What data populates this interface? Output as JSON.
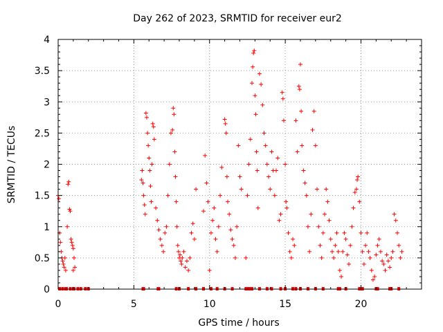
{
  "chart_data": {
    "type": "scatter",
    "title": "Day 262 of 2023, SRMTID for receiver eur2",
    "xlabel": "GPS time / hours",
    "ylabel": "SRMTID / TECUs",
    "xlim": [
      0,
      24
    ],
    "ylim": [
      0,
      4
    ],
    "xticks": [
      0,
      5,
      10,
      15,
      20
    ],
    "yticks": [
      0,
      0.5,
      1,
      1.5,
      2,
      2.5,
      3,
      3.5,
      4
    ],
    "xtick_labels": [
      "0",
      "5",
      "10",
      "15",
      "20"
    ],
    "ytick_labels": [
      "0",
      "0.5",
      "1",
      "1.5",
      "2",
      "2.5",
      "3",
      "3.5",
      "4"
    ],
    "grid": true,
    "marker": "plus",
    "color": "#ff0000",
    "series": [
      {
        "name": "SRMTID",
        "points": [
          [
            0.0,
            1.5
          ],
          [
            0.05,
            1.45
          ],
          [
            0.1,
            0.9
          ],
          [
            0.15,
            0.75
          ],
          [
            0.2,
            0.6
          ],
          [
            0.25,
            0.5
          ],
          [
            0.3,
            0.45
          ],
          [
            0.35,
            0.4
          ],
          [
            0.4,
            0.35
          ],
          [
            0.45,
            0.5
          ],
          [
            0.5,
            0.3
          ],
          [
            0.6,
            1.0
          ],
          [
            0.65,
            1.68
          ],
          [
            0.7,
            1.72
          ],
          [
            0.75,
            1.28
          ],
          [
            0.8,
            1.25
          ],
          [
            0.85,
            0.8
          ],
          [
            0.9,
            0.75
          ],
          [
            0.95,
            0.7
          ],
          [
            1.0,
            0.65
          ],
          [
            1.05,
            0.5
          ],
          [
            1.1,
            0.35
          ],
          [
            1.0,
            0.3
          ],
          [
            5.5,
            1.75
          ],
          [
            5.55,
            1.9
          ],
          [
            5.6,
            1.7
          ],
          [
            5.65,
            1.5
          ],
          [
            5.7,
            1.35
          ],
          [
            5.75,
            1.2
          ],
          [
            5.8,
            2.82
          ],
          [
            5.85,
            2.75
          ],
          [
            5.9,
            2.5
          ],
          [
            5.95,
            2.3
          ],
          [
            6.0,
            2.1
          ],
          [
            6.05,
            1.9
          ],
          [
            6.1,
            1.65
          ],
          [
            6.15,
            1.4
          ],
          [
            6.2,
            2.0
          ],
          [
            6.25,
            2.65
          ],
          [
            6.3,
            2.6
          ],
          [
            6.35,
            2.4
          ],
          [
            6.45,
            1.3
          ],
          [
            6.55,
            1.1
          ],
          [
            6.65,
            0.95
          ],
          [
            6.75,
            0.8
          ],
          [
            6.85,
            0.7
          ],
          [
            6.95,
            0.6
          ],
          [
            7.05,
            0.9
          ],
          [
            7.15,
            1.0
          ],
          [
            7.25,
            1.5
          ],
          [
            7.35,
            2.0
          ],
          [
            7.45,
            2.5
          ],
          [
            7.55,
            2.55
          ],
          [
            7.6,
            2.9
          ],
          [
            7.65,
            2.8
          ],
          [
            7.7,
            2.2
          ],
          [
            7.75,
            1.8
          ],
          [
            7.8,
            1.4
          ],
          [
            7.85,
            1.0
          ],
          [
            7.9,
            0.7
          ],
          [
            7.95,
            0.6
          ],
          [
            8.0,
            0.5
          ],
          [
            8.05,
            0.55
          ],
          [
            8.1,
            0.45
          ],
          [
            8.15,
            0.4
          ],
          [
            8.2,
            0.5
          ],
          [
            8.3,
            0.6
          ],
          [
            8.4,
            0.35
          ],
          [
            8.5,
            0.45
          ],
          [
            8.6,
            0.3
          ],
          [
            8.7,
            0.5
          ],
          [
            8.8,
            0.9
          ],
          [
            8.9,
            1.05
          ],
          [
            9.0,
            0.8
          ],
          [
            9.1,
            1.6
          ],
          [
            9.6,
            1.25
          ],
          [
            9.7,
            2.14
          ],
          [
            9.8,
            1.7
          ],
          [
            9.9,
            1.4
          ],
          [
            10.0,
            0.3
          ],
          [
            10.1,
            0.9
          ],
          [
            10.2,
            1.1
          ],
          [
            10.3,
            1.3
          ],
          [
            10.4,
            0.8
          ],
          [
            10.5,
            0.6
          ],
          [
            10.6,
            1.0
          ],
          [
            10.7,
            1.5
          ],
          [
            10.8,
            1.95
          ],
          [
            11.0,
            2.72
          ],
          [
            11.05,
            2.65
          ],
          [
            11.1,
            2.5
          ],
          [
            11.15,
            1.8
          ],
          [
            11.2,
            1.4
          ],
          [
            11.3,
            1.2
          ],
          [
            11.4,
            0.95
          ],
          [
            11.5,
            0.8
          ],
          [
            11.6,
            0.7
          ],
          [
            11.7,
            0.5
          ],
          [
            11.8,
            1.0
          ],
          [
            11.9,
            2.3
          ],
          [
            12.0,
            1.8
          ],
          [
            12.1,
            1.6
          ],
          [
            12.4,
            0.5
          ],
          [
            12.5,
            1.5
          ],
          [
            12.6,
            2.0
          ],
          [
            12.7,
            2.4
          ],
          [
            12.8,
            3.3
          ],
          [
            12.85,
            3.56
          ],
          [
            12.9,
            3.78
          ],
          [
            12.95,
            3.82
          ],
          [
            13.0,
            3.1
          ],
          [
            13.05,
            2.8
          ],
          [
            13.1,
            2.2
          ],
          [
            13.15,
            1.9
          ],
          [
            13.2,
            1.3
          ],
          [
            13.3,
            3.45
          ],
          [
            13.4,
            3.28
          ],
          [
            13.5,
            2.95
          ],
          [
            13.6,
            2.5
          ],
          [
            13.7,
            2.3
          ],
          [
            13.8,
            2.0
          ],
          [
            13.9,
            1.8
          ],
          [
            14.0,
            1.6
          ],
          [
            14.1,
            2.2
          ],
          [
            14.2,
            1.9
          ],
          [
            14.3,
            1.5
          ],
          [
            14.4,
            1.9
          ],
          [
            14.5,
            2.1
          ],
          [
            14.6,
            1.1
          ],
          [
            14.7,
            1.2
          ],
          [
            14.8,
            3.15
          ],
          [
            14.85,
            3.05
          ],
          [
            14.9,
            2.7
          ],
          [
            15.0,
            2.0
          ],
          [
            15.05,
            1.4
          ],
          [
            15.1,
            1.3
          ],
          [
            15.2,
            0.9
          ],
          [
            15.3,
            0.6
          ],
          [
            15.4,
            0.5
          ],
          [
            15.5,
            0.8
          ],
          [
            15.6,
            0.7
          ],
          [
            15.7,
            2.7
          ],
          [
            15.8,
            2.2
          ],
          [
            15.9,
            3.25
          ],
          [
            15.95,
            3.2
          ],
          [
            16.0,
            3.6
          ],
          [
            16.05,
            2.85
          ],
          [
            16.1,
            2.3
          ],
          [
            16.2,
            1.9
          ],
          [
            16.3,
            1.7
          ],
          [
            16.4,
            1.5
          ],
          [
            16.5,
            1.0
          ],
          [
            16.6,
            0.6
          ],
          [
            16.7,
            1.2
          ],
          [
            16.8,
            2.55
          ],
          [
            16.9,
            2.85
          ],
          [
            17.0,
            2.3
          ],
          [
            17.1,
            1.6
          ],
          [
            17.2,
            1.0
          ],
          [
            17.3,
            0.7
          ],
          [
            17.4,
            0.5
          ],
          [
            17.5,
            0.9
          ],
          [
            17.6,
            1.2
          ],
          [
            17.7,
            1.6
          ],
          [
            17.8,
            1.4
          ],
          [
            17.9,
            1.1
          ],
          [
            18.0,
            0.8
          ],
          [
            18.1,
            0.6
          ],
          [
            18.2,
            0.5
          ],
          [
            18.3,
            0.7
          ],
          [
            18.4,
            0.9
          ],
          [
            18.5,
            0.6
          ],
          [
            18.6,
            0.3
          ],
          [
            18.7,
            0.2
          ],
          [
            18.8,
            0.6
          ],
          [
            18.9,
            0.9
          ],
          [
            19.0,
            0.8
          ],
          [
            19.1,
            0.55
          ],
          [
            19.2,
            0.4
          ],
          [
            19.3,
            0.7
          ],
          [
            19.4,
            1.0
          ],
          [
            19.5,
            1.3
          ],
          [
            19.6,
            1.55
          ],
          [
            19.7,
            1.6
          ],
          [
            19.75,
            1.75
          ],
          [
            19.8,
            1.8
          ],
          [
            19.9,
            1.4
          ],
          [
            20.0,
            0.9
          ],
          [
            20.1,
            0.6
          ],
          [
            20.2,
            0.4
          ],
          [
            20.3,
            0.7
          ],
          [
            20.4,
            0.9
          ],
          [
            20.5,
            0.6
          ],
          [
            20.6,
            0.5
          ],
          [
            20.7,
            0.3
          ],
          [
            20.8,
            0.15
          ],
          [
            20.9,
            0.2
          ],
          [
            21.0,
            0.55
          ],
          [
            21.1,
            0.7
          ],
          [
            21.2,
            0.8
          ],
          [
            21.3,
            0.6
          ],
          [
            21.4,
            0.45
          ],
          [
            21.5,
            0.4
          ],
          [
            21.6,
            0.3
          ],
          [
            21.7,
            0.55
          ],
          [
            21.8,
            0.45
          ],
          [
            21.9,
            0.35
          ],
          [
            22.0,
            0.5
          ],
          [
            22.1,
            0.6
          ],
          [
            22.2,
            1.2
          ],
          [
            22.3,
            1.1
          ],
          [
            22.4,
            0.9
          ],
          [
            22.5,
            0.7
          ],
          [
            22.6,
            0.5
          ],
          [
            22.7,
            0.6
          ]
        ]
      }
    ],
    "baseline_points": [
      0.1,
      0.3,
      0.5,
      0.55,
      0.8,
      1.0,
      1.05,
      1.3,
      1.5,
      1.8,
      2.0,
      5.6,
      5.65,
      6.6,
      6.65,
      7.8,
      8.0,
      8.6,
      9.1,
      9.6,
      10.1,
      10.5,
      11.0,
      11.5,
      12.4,
      12.5,
      12.6,
      12.7,
      12.8,
      13.3,
      13.8,
      14.1,
      14.7,
      15.0,
      15.5,
      15.7,
      16.0,
      16.5,
      17.0,
      17.5,
      18.5,
      18.6,
      19.0,
      19.9,
      20.0,
      20.1,
      21.0,
      21.1,
      21.9,
      22.0,
      22.5
    ]
  }
}
